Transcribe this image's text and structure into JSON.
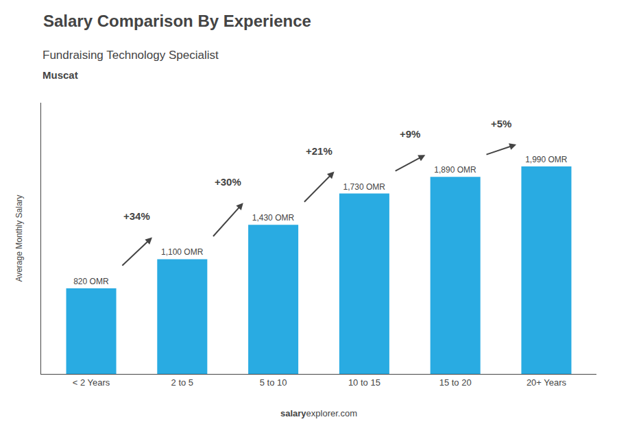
{
  "chart_data": {
    "type": "bar",
    "title": "Salary Comparison By Experience",
    "subtitle": "Fundraising Technology Specialist",
    "city": "Muscat",
    "categories": [
      "< 2 Years",
      "2 to 5",
      "5 to 10",
      "10 to 15",
      "15 to 20",
      "20+ Years"
    ],
    "values": [
      820,
      1100,
      1430,
      1730,
      1890,
      1990
    ],
    "value_labels": [
      "820 OMR",
      "1,100 OMR",
      "1,430 OMR",
      "1,730 OMR",
      "1,890 OMR",
      "1,990 OMR"
    ],
    "data_labels": true,
    "annotations": [
      "+34%",
      "+30%",
      "+21%",
      "+9%",
      "+5%"
    ],
    "footer": [
      "salary",
      "explorer.com"
    ],
    "ylabel": "Average Monthly Salary",
    "color": "#29ABE2",
    "ylim": [
      0,
      2600
    ],
    "grid": false,
    "tick_labels": "x"
  }
}
